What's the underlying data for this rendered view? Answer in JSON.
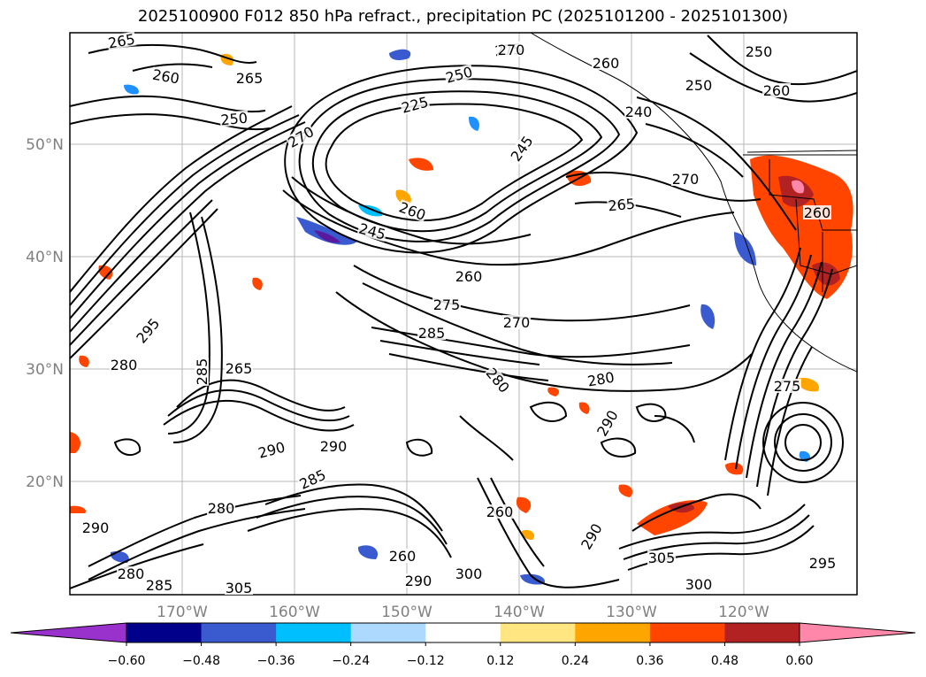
{
  "title": "2025100900 F012 850 hPa refract., precipitation PC (2025101200 - 2025101300)",
  "map": {
    "lon_labels": [
      "170°W",
      "160°W",
      "150°W",
      "140°W",
      "130°W",
      "120°W"
    ],
    "lat_labels": [
      "50°N",
      "40°N",
      "30°N",
      "20°N"
    ],
    "contour_labels": [
      "265",
      "260",
      "265",
      "250",
      "270",
      "225",
      "250",
      "245",
      "275",
      "270",
      "260",
      "250",
      "260",
      "240",
      "270",
      "265",
      "260",
      "250",
      "245",
      "260",
      "260",
      "270",
      "275",
      "280",
      "285",
      "280",
      "290",
      "295",
      "280",
      "290",
      "285",
      "280",
      "290",
      "300",
      "305",
      "300",
      "305",
      "295",
      "290",
      "260",
      "265",
      "285",
      "290",
      "280",
      "285",
      "260",
      "290",
      "275"
    ]
  },
  "colorbar": {
    "colors": [
      "#9932cc",
      "#00008b",
      "#3a5bd0",
      "#00bfff",
      "#add8ff",
      "#ffffff",
      "#ffe680",
      "#ffa500",
      "#ff4500",
      "#b22222",
      "#ff88aa"
    ],
    "tick_labels": [
      "−0.60",
      "−0.48",
      "−0.36",
      "−0.24",
      "−0.12",
      "0.12",
      "0.24",
      "0.36",
      "0.48",
      "0.60"
    ]
  }
}
